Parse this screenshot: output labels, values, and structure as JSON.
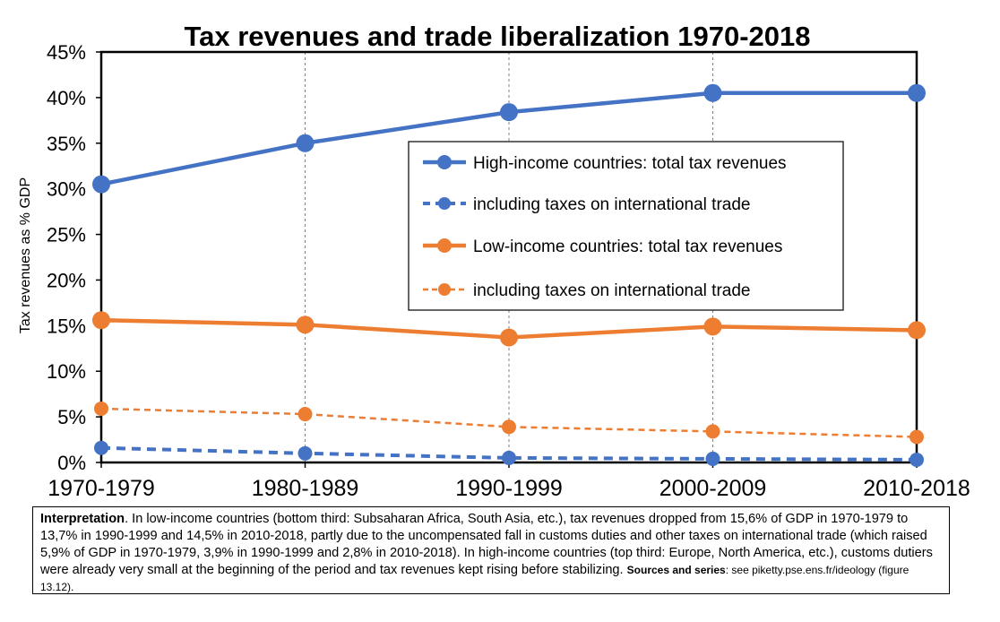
{
  "chart_data": {
    "type": "line",
    "title": "Tax revenues and trade liberalization 1970-2018",
    "ylabel": "Tax revenues as % GDP",
    "xlabel": "",
    "categories": [
      "1970-1979",
      "1980-1989",
      "1990-1999",
      "2000-2009",
      "2010-2018"
    ],
    "ylim": [
      0,
      45
    ],
    "yticks": [
      "0%",
      "5%",
      "10%",
      "15%",
      "20%",
      "25%",
      "30%",
      "35%",
      "40%",
      "45%"
    ],
    "grid": "vertical dashed",
    "legend_position": "center-right",
    "series": [
      {
        "name": "High-income countries: total tax revenues",
        "values": [
          30.5,
          35.0,
          38.4,
          40.5,
          40.5
        ],
        "color": "#4472C4",
        "style": "solid"
      },
      {
        "name": "including taxes on international trade",
        "values": [
          1.6,
          1.0,
          0.5,
          0.4,
          0.3
        ],
        "color": "#4472C4",
        "style": "dashed"
      },
      {
        "name": "Low-income countries: total tax revenues",
        "values": [
          15.6,
          15.1,
          13.7,
          14.9,
          14.5
        ],
        "color": "#ED7D31",
        "style": "solid"
      },
      {
        "name": "including taxes on international trade",
        "values": [
          5.9,
          5.3,
          3.9,
          3.4,
          2.8
        ],
        "color": "#ED7D31",
        "style": "dashed"
      }
    ]
  },
  "note": {
    "heading": "Interpretation",
    "text": ". In low-income countries (bottom third: Subsaharan Africa, South Asia, etc.), tax revenues dropped from 15,6% of GDP in 1970-1979 to 13,7% in 1990-1999 and 14,5% in 2010-2018, partly due to the uncompensated fall in customs duties and other taxes on international trade (which raised 5,9% of GDP in 1970-1979, 3,9% in 1990-1999 and 2,8% in 2010-2018). In high-income countries (top third: Europe, North America, etc.), customs dutiers were already very small at the beginning of the period and tax revenues kept rising before stabilizing.",
    "sources_label": "Sources and series",
    "sources_text": ": see piketty.pse.ens.fr/ideology (figure 13.12)."
  }
}
